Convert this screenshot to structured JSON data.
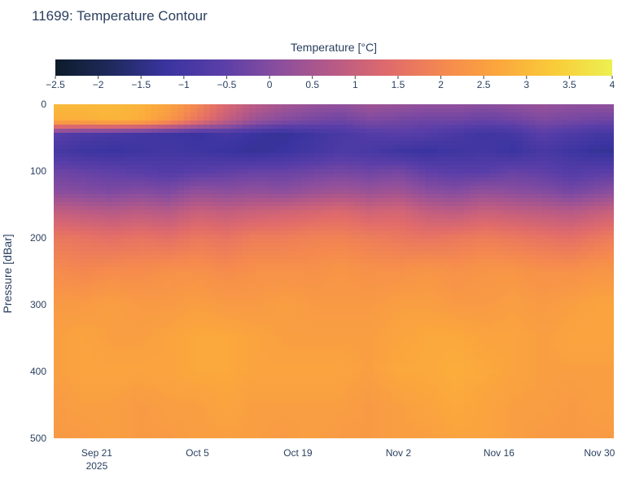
{
  "chart_data": {
    "type": "heatmap",
    "title": "11699: Temperature Contour",
    "colorbar": {
      "title": "Temperature [°C]",
      "range": [
        -2.5,
        4
      ],
      "ticks": [
        -2.5,
        -2,
        -1.5,
        -1,
        -0.5,
        0,
        0.5,
        1,
        1.5,
        2,
        2.5,
        3,
        3.5,
        4
      ],
      "tick_labels": [
        "−2.5",
        "−2",
        "−1.5",
        "−1",
        "−0.5",
        "0",
        "0.5",
        "1",
        "1.5",
        "2",
        "2.5",
        "3",
        "3.5",
        "4"
      ],
      "colorscale": [
        "#0d1b2a",
        "#1f2a5c",
        "#3a34a0",
        "#5a3ea8",
        "#8a4e9e",
        "#b85a86",
        "#e06b6b",
        "#f58a4e",
        "#fba83c",
        "#f9cd3a",
        "#ecf051"
      ]
    },
    "xaxis": {
      "range_days": [
        0,
        78
      ],
      "ticks": [
        {
          "day": 6,
          "label": "Sep 21",
          "sublabel": "2025"
        },
        {
          "day": 20,
          "label": "Oct 5"
        },
        {
          "day": 34,
          "label": "Oct 19"
        },
        {
          "day": 48,
          "label": "Nov 2"
        },
        {
          "day": 62,
          "label": "Nov 16"
        },
        {
          "day": 76,
          "label": "Nov 30"
        }
      ]
    },
    "yaxis": {
      "label": "Pressure [dBar]",
      "range": [
        0,
        500
      ],
      "reversed": true,
      "ticks": [
        0,
        100,
        200,
        300,
        400,
        500
      ]
    },
    "days": [
      0,
      4,
      8,
      12,
      16,
      20,
      24,
      28,
      32,
      36,
      40,
      44,
      48,
      52,
      56,
      60,
      64,
      68,
      72,
      76,
      78
    ],
    "pressures": [
      0,
      25,
      45,
      70,
      100,
      130,
      160,
      200,
      250,
      300,
      350,
      400,
      450,
      500
    ],
    "z": [
      [
        3.0,
        3.0,
        3.0,
        2.9,
        2.6,
        2.0,
        1.3,
        0.8,
        0.5,
        0.3,
        0.2,
        0.4,
        0.3,
        0.2,
        0.2,
        0.1,
        0.2,
        0.3,
        0.2,
        0.2,
        0.2
      ],
      [
        2.8,
        2.8,
        2.9,
        2.8,
        2.3,
        1.6,
        0.9,
        0.3,
        0.0,
        -0.2,
        -0.3,
        -0.1,
        -0.2,
        -0.3,
        -0.3,
        -0.4,
        -0.3,
        -0.1,
        -0.2,
        -0.3,
        -0.3
      ],
      [
        -0.6,
        -0.8,
        -0.9,
        -1.0,
        -1.1,
        -1.2,
        -1.0,
        -1.2,
        -1.3,
        -1.1,
        -0.9,
        -0.7,
        -0.6,
        -0.7,
        -0.9,
        -1.1,
        -1.0,
        -0.6,
        -0.8,
        -1.0,
        -1.0
      ],
      [
        -0.9,
        -1.1,
        -1.2,
        -1.1,
        -1.0,
        -1.1,
        -1.2,
        -1.3,
        -1.2,
        -1.0,
        -0.8,
        -0.9,
        -1.1,
        -1.2,
        -1.1,
        -1.0,
        -1.2,
        -0.9,
        -1.1,
        -1.3,
        -1.3
      ],
      [
        -0.3,
        -0.4,
        -0.5,
        -0.6,
        -0.7,
        -0.6,
        -0.5,
        -0.4,
        -0.4,
        -0.3,
        -0.2,
        -0.3,
        -0.2,
        -0.5,
        -0.6,
        -0.6,
        -0.4,
        -0.5,
        -0.7,
        -0.6,
        -0.6
      ],
      [
        0.1,
        0.0,
        -0.1,
        0.0,
        -0.1,
        0.2,
        0.1,
        0.2,
        0.1,
        0.3,
        0.4,
        0.3,
        0.4,
        0.1,
        0.0,
        0.2,
        0.1,
        0.0,
        -0.2,
        0.0,
        0.1
      ],
      [
        0.9,
        0.8,
        0.7,
        0.8,
        0.7,
        1.0,
        0.9,
        1.0,
        1.1,
        1.2,
        1.3,
        1.1,
        1.2,
        0.9,
        0.8,
        1.0,
        0.9,
        0.8,
        0.7,
        0.9,
        1.0
      ],
      [
        1.7,
        1.6,
        1.5,
        1.6,
        1.5,
        1.7,
        1.6,
        1.8,
        1.8,
        1.9,
        1.9,
        1.8,
        1.7,
        1.6,
        1.7,
        1.8,
        1.7,
        1.6,
        1.5,
        1.7,
        1.8
      ],
      [
        2.1,
        2.0,
        2.1,
        2.1,
        2.2,
        2.2,
        2.1,
        2.2,
        2.2,
        2.2,
        2.3,
        2.2,
        2.2,
        2.3,
        2.2,
        2.3,
        2.3,
        2.2,
        2.2,
        2.3,
        2.3
      ],
      [
        2.4,
        2.4,
        2.5,
        2.4,
        2.4,
        2.5,
        2.4,
        2.4,
        2.5,
        2.4,
        2.4,
        2.4,
        2.5,
        2.5,
        2.4,
        2.4,
        2.5,
        2.4,
        2.5,
        2.6,
        2.6
      ],
      [
        2.5,
        2.6,
        2.5,
        2.5,
        2.6,
        2.7,
        2.7,
        2.6,
        2.5,
        2.5,
        2.5,
        2.5,
        2.6,
        2.7,
        2.7,
        2.6,
        2.6,
        2.5,
        2.6,
        2.6,
        2.6
      ],
      [
        2.5,
        2.6,
        2.6,
        2.6,
        2.6,
        2.7,
        2.7,
        2.6,
        2.6,
        2.6,
        2.6,
        2.5,
        2.7,
        2.7,
        2.8,
        2.7,
        2.6,
        2.5,
        2.5,
        2.5,
        2.5
      ],
      [
        2.4,
        2.5,
        2.5,
        2.4,
        2.5,
        2.5,
        2.6,
        2.5,
        2.5,
        2.5,
        2.5,
        2.4,
        2.5,
        2.6,
        2.7,
        2.6,
        2.5,
        2.5,
        2.4,
        2.5,
        2.5
      ],
      [
        2.4,
        2.4,
        2.5,
        2.4,
        2.4,
        2.5,
        2.5,
        2.5,
        2.4,
        2.5,
        2.4,
        2.4,
        2.5,
        2.5,
        2.6,
        2.6,
        2.5,
        2.4,
        2.4,
        2.4,
        2.4
      ]
    ]
  }
}
